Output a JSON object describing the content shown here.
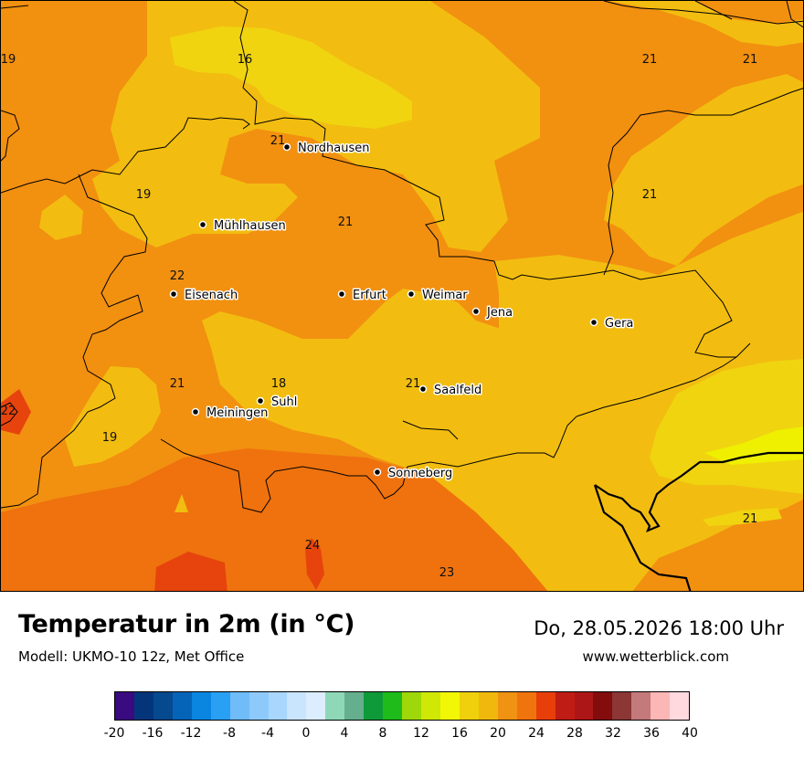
{
  "title": "Temperatur in 2m (in °C)",
  "model": "Modell: UKMO-10 12z, Met Office",
  "datetime": "Do, 28.05.2026 18:00 Uhr",
  "website": "www.wetterblick.com",
  "cities": [
    {
      "name": "Nordhausen"
    },
    {
      "name": "Mühlhausen"
    },
    {
      "name": "Eisenach"
    },
    {
      "name": "Erfurt"
    },
    {
      "name": "Weimar"
    },
    {
      "name": "Jena"
    },
    {
      "name": "Gera"
    },
    {
      "name": "Suhl"
    },
    {
      "name": "Meiningen"
    },
    {
      "name": "Saalfeld"
    },
    {
      "name": "Sonneberg"
    }
  ],
  "temperature_labels": [
    "19",
    "16",
    "21",
    "21",
    "21",
    "19",
    "21",
    "21",
    "22",
    "21",
    "18",
    "21",
    "22",
    "19",
    "24",
    "23",
    "21"
  ],
  "legend": {
    "ticks": [
      "-20",
      "-16",
      "-12",
      "-8",
      "-4",
      "0",
      "4",
      "8",
      "12",
      "16",
      "20",
      "24",
      "28",
      "32",
      "36",
      "40"
    ],
    "colors": [
      "#3a0a80",
      "#04357a",
      "#05498f",
      "#0563b8",
      "#0a86e0",
      "#2aa0f5",
      "#6fbcf8",
      "#8ec9fb",
      "#a9d6fc",
      "#c9e4fd",
      "#dbedfe",
      "#8ed8b8",
      "#65ae8e",
      "#0f9a3a",
      "#1fbb1a",
      "#9ed80a",
      "#cfe805",
      "#f2f705",
      "#f0cf0c",
      "#f0b80c",
      "#f09212",
      "#f0740e",
      "#e83f0a",
      "#be1c14",
      "#ad1616",
      "#830c0c",
      "#8c3636",
      "#c47a7a",
      "#fbb6b6",
      "#ffd9de"
    ]
  },
  "map_colors": {
    "c16": "#f0d410",
    "c18": "#f2bd10",
    "c20": "#f29010",
    "c22": "#ef720e",
    "c24": "#e6440c",
    "c14": "#eef000"
  }
}
